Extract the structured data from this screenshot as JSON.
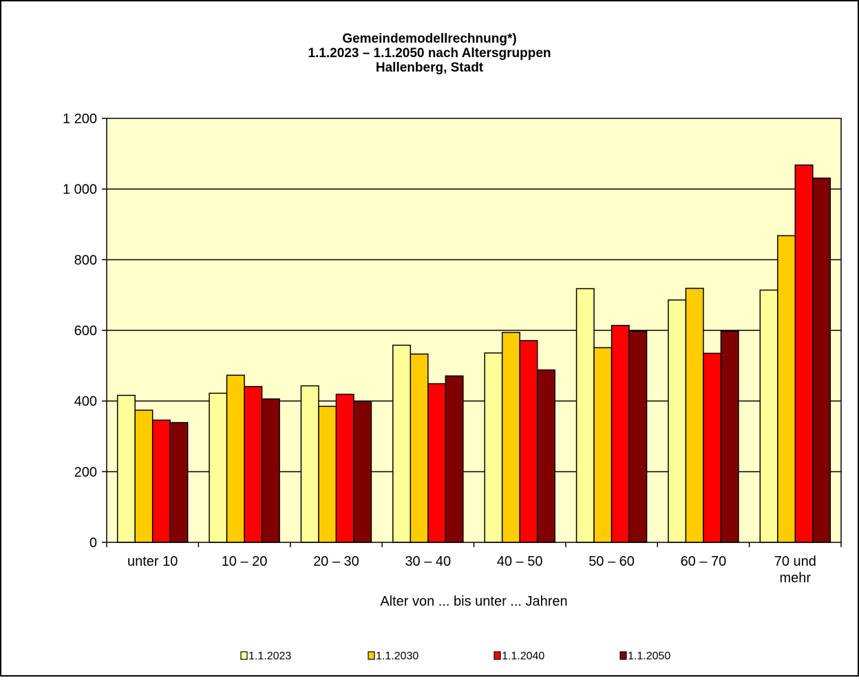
{
  "chart_data": {
    "type": "bar",
    "title_lines": [
      "Gemeindemodellrechnung*)",
      "1.1.2023 – 1.1.2050 nach Altersgruppen",
      "Hallenberg, Stadt"
    ],
    "xlabel": "Alter von ... bis unter ... Jahren",
    "ylabel": "",
    "ylim": [
      0,
      1200
    ],
    "yticks": [
      0,
      200,
      400,
      600,
      800,
      1000,
      1200
    ],
    "ytick_labels": [
      "0",
      "200",
      "400",
      "600",
      "800",
      "1 000",
      "1 200"
    ],
    "grid": true,
    "legend_position": "bottom",
    "categories": [
      [
        "unter 10"
      ],
      [
        "10 – 20"
      ],
      [
        "20 – 30"
      ],
      [
        "30 – 40"
      ],
      [
        "40 – 50"
      ],
      [
        "50 – 60"
      ],
      [
        "60 – 70"
      ],
      [
        "70 und",
        "mehr"
      ]
    ],
    "series": [
      {
        "name": "1.1.2023",
        "color": "#ffff99",
        "values": [
          416,
          422,
          443,
          558,
          536,
          718,
          686,
          714
        ]
      },
      {
        "name": "1.1.2030",
        "color": "#ffcc00",
        "values": [
          374,
          473,
          385,
          533,
          594,
          551,
          719,
          868
        ]
      },
      {
        "name": "1.1.2040",
        "color": "#ff0000",
        "values": [
          346,
          441,
          419,
          449,
          571,
          614,
          535,
          1068
        ]
      },
      {
        "name": "1.1.2050",
        "color": "#800000",
        "values": [
          339,
          406,
          399,
          471,
          488,
          598,
          598,
          1031
        ]
      }
    ],
    "plot_background": "#ffffcc",
    "grid_color": "#000000"
  }
}
